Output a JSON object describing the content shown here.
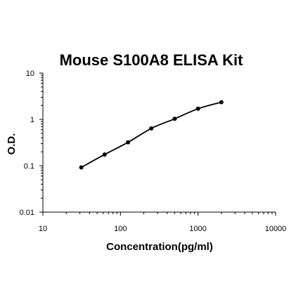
{
  "chart_data": {
    "type": "line",
    "title": "Mouse S100A8 ELISA Kit",
    "xlabel": "Concentration(pg/ml)",
    "ylabel": "O.D.",
    "xscale": "log",
    "yscale": "log",
    "xlim": [
      10,
      10000
    ],
    "ylim": [
      0.01,
      10
    ],
    "x_ticks": [
      "10",
      "100",
      "1000",
      "10000"
    ],
    "y_ticks": [
      "0.01",
      "0.1",
      "1",
      "10"
    ],
    "grid": false,
    "legend": "none",
    "series": [
      {
        "x": [
          31.25,
          62.5,
          125,
          250,
          500,
          1000,
          2000
        ],
        "y": [
          0.092,
          0.175,
          0.32,
          0.64,
          1.03,
          1.7,
          2.35
        ]
      }
    ],
    "colors": {
      "line": "#000000",
      "marker": "#000000",
      "axis": "#000000"
    }
  }
}
